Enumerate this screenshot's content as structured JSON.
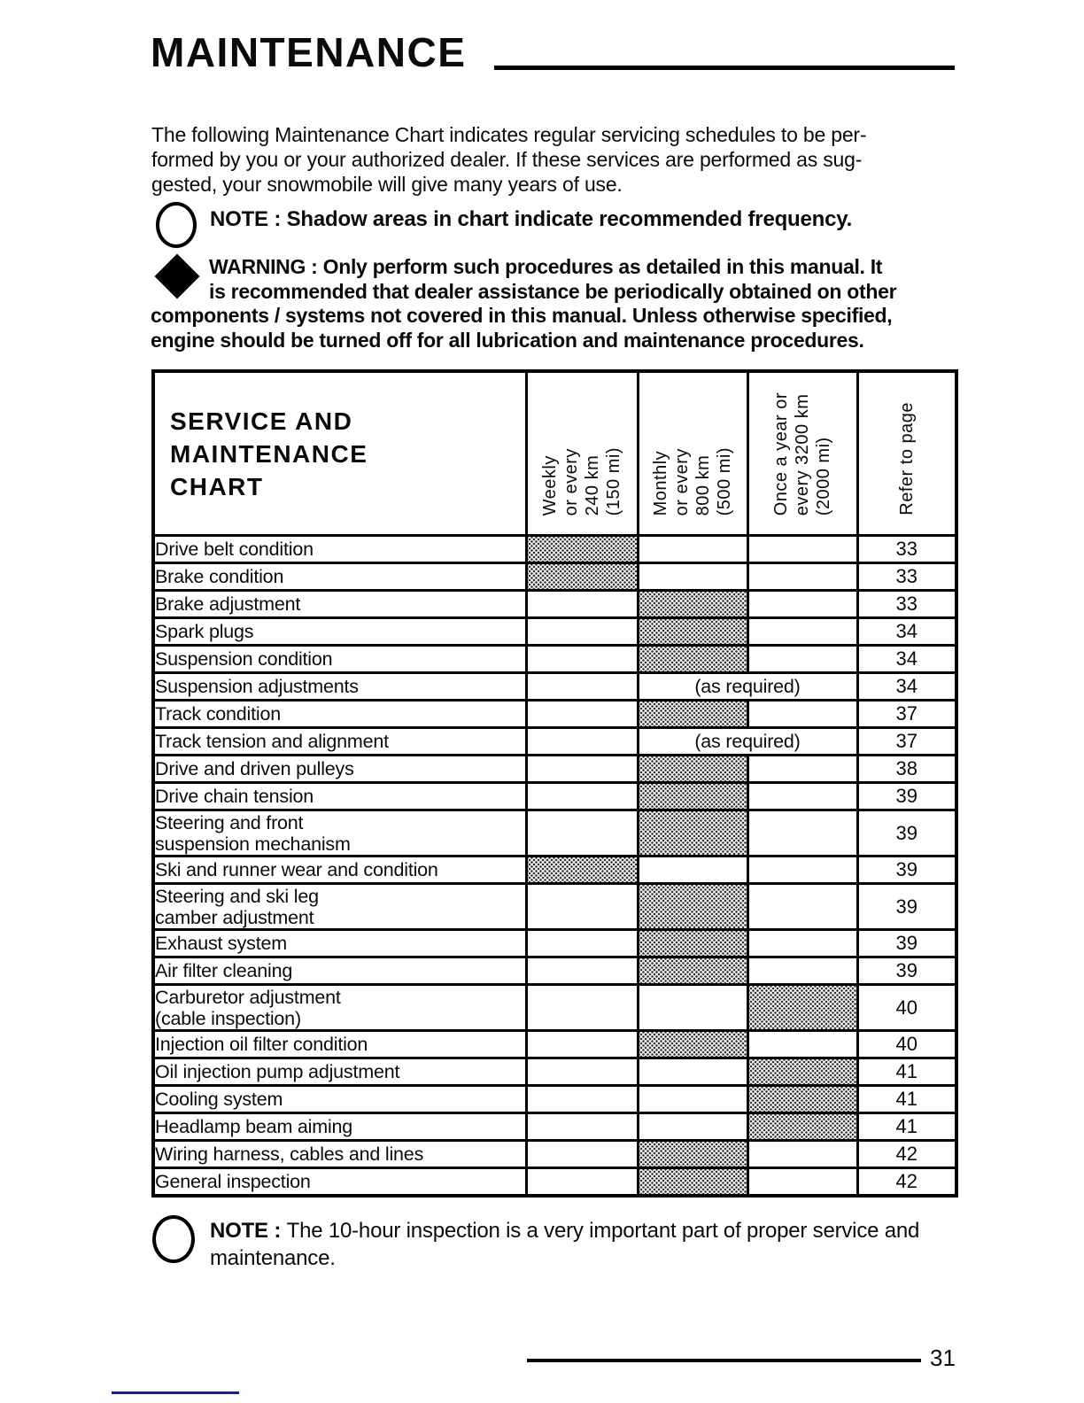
{
  "page": {
    "title": "MAINTENANCE",
    "page_number": "31"
  },
  "colors": {
    "ink": "#0b0b0b",
    "shade_dot": "#333333",
    "bottom_rule_blue": "#1b1d8f"
  },
  "icons": {
    "note_icon": "outlined-circle",
    "warning_icon": "filled-diamond"
  },
  "intro": {
    "lines": [
      "The following Maintenance Chart indicates regular servicing schedules to be per-",
      "formed by you or your authorized dealer. If these services are performed as sug-",
      "gested, your snowmobile will give many years of use."
    ]
  },
  "note_top": {
    "label": "NOTE :",
    "text": "Shadow areas in chart indicate recommended frequency."
  },
  "warning": {
    "lines_indented": [
      "WARNING : Only perform such procedures as detailed in this manual. It",
      "is recommended that dealer assistance be periodically obtained on other"
    ],
    "lines_full": [
      "components / systems not covered in this manual. Unless otherwise specified,",
      "engine should be turned off for all lubrication and maintenance procedures."
    ]
  },
  "table": {
    "title_lines": [
      "SERVICE AND",
      "MAINTENANCE",
      "CHART"
    ],
    "columns": [
      {
        "key": "weekly",
        "lines": [
          "Weekly",
          "or every",
          "240 km",
          "(150 mi)"
        ]
      },
      {
        "key": "monthly",
        "lines": [
          "Monthly",
          "or every",
          "800 km",
          "(500 mi)"
        ]
      },
      {
        "key": "yearly",
        "lines": [
          "Once a year or",
          "every 3200 km",
          "(2000 mi)"
        ]
      },
      {
        "key": "page",
        "lines": [
          "Refer to page"
        ]
      }
    ],
    "as_required_label": "(as required)",
    "rows": [
      {
        "label_lines": [
          "Drive belt condition"
        ],
        "shaded": "weekly",
        "as_required": false,
        "page": "33"
      },
      {
        "label_lines": [
          "Brake condition"
        ],
        "shaded": "weekly",
        "as_required": false,
        "page": "33"
      },
      {
        "label_lines": [
          "Brake adjustment"
        ],
        "shaded": "monthly",
        "as_required": false,
        "page": "33"
      },
      {
        "label_lines": [
          "Spark plugs"
        ],
        "shaded": "monthly",
        "as_required": false,
        "page": "34"
      },
      {
        "label_lines": [
          "Suspension condition"
        ],
        "shaded": "monthly",
        "as_required": false,
        "page": "34"
      },
      {
        "label_lines": [
          "Suspension adjustments"
        ],
        "shaded": null,
        "as_required": true,
        "page": "34"
      },
      {
        "label_lines": [
          "Track condition"
        ],
        "shaded": "monthly",
        "as_required": false,
        "page": "37"
      },
      {
        "label_lines": [
          "Track tension and alignment"
        ],
        "shaded": null,
        "as_required": true,
        "page": "37"
      },
      {
        "label_lines": [
          "Drive and driven pulleys"
        ],
        "shaded": "monthly",
        "as_required": false,
        "page": "38"
      },
      {
        "label_lines": [
          "Drive chain tension"
        ],
        "shaded": "monthly",
        "as_required": false,
        "page": "39"
      },
      {
        "label_lines": [
          "Steering and front",
          "suspension mechanism"
        ],
        "shaded": "monthly",
        "as_required": false,
        "page": "39"
      },
      {
        "label_lines": [
          "Ski and runner wear and condition"
        ],
        "shaded": "weekly",
        "as_required": false,
        "page": "39"
      },
      {
        "label_lines": [
          "Steering and ski leg",
          "camber adjustment"
        ],
        "shaded": "monthly",
        "as_required": false,
        "page": "39"
      },
      {
        "label_lines": [
          "Exhaust system"
        ],
        "shaded": "monthly",
        "as_required": false,
        "page": "39"
      },
      {
        "label_lines": [
          "Air filter cleaning"
        ],
        "shaded": "monthly",
        "as_required": false,
        "page": "39"
      },
      {
        "label_lines": [
          "Carburetor adjustment",
          "(cable inspection)"
        ],
        "shaded": "yearly",
        "as_required": false,
        "page": "40"
      },
      {
        "label_lines": [
          "Injection oil filter condition"
        ],
        "shaded": "monthly",
        "as_required": false,
        "page": "40"
      },
      {
        "label_lines": [
          "Oil injection pump adjustment"
        ],
        "shaded": "yearly",
        "as_required": false,
        "page": "41"
      },
      {
        "label_lines": [
          "Cooling system"
        ],
        "shaded": "yearly",
        "as_required": false,
        "page": "41"
      },
      {
        "label_lines": [
          "Headlamp beam aiming"
        ],
        "shaded": "yearly",
        "as_required": false,
        "page": "41"
      },
      {
        "label_lines": [
          "Wiring harness, cables and lines"
        ],
        "shaded": "monthly",
        "as_required": false,
        "page": "42"
      },
      {
        "label_lines": [
          "General inspection"
        ],
        "shaded": "monthly",
        "as_required": false,
        "page": "42"
      }
    ]
  },
  "note_bottom": {
    "label": "NOTE :",
    "line1": "The 10-hour inspection is a very important part of proper service and",
    "line2": "maintenance."
  }
}
